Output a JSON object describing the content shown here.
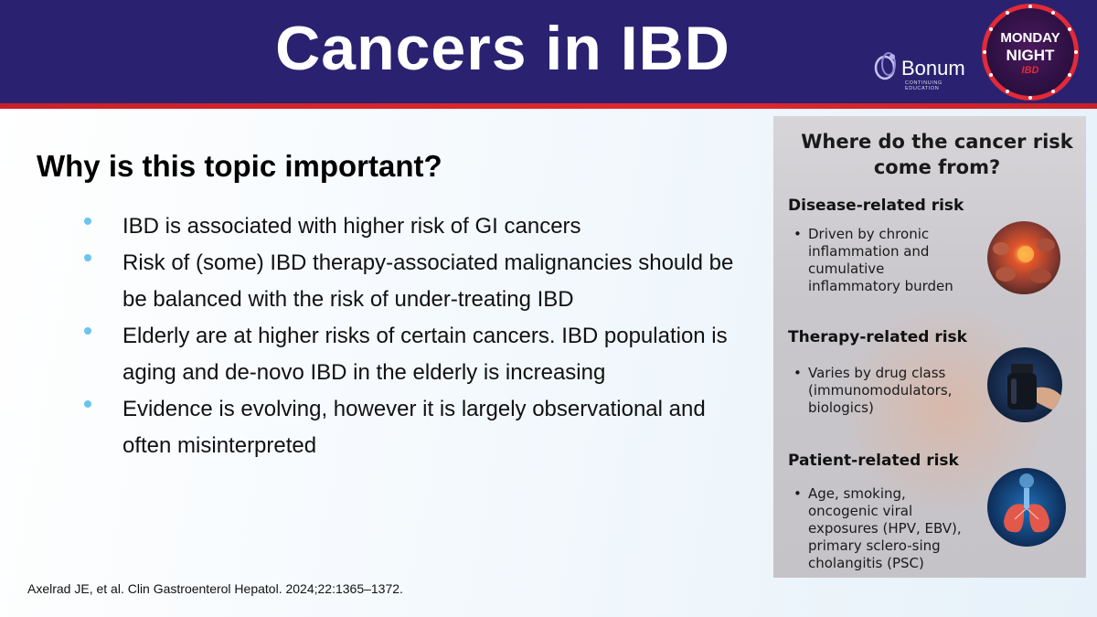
{
  "header": {
    "title": "Cancers in IBD",
    "bonum_logo": {
      "word": "Bonum",
      "sub": "CONTINUING EDUCATION"
    },
    "badge": {
      "line1": "MONDAY",
      "line2": "NIGHT",
      "line3": "IBD"
    }
  },
  "main": {
    "subtitle": "Why is this topic important?",
    "bullets": [
      {
        "text": "IBD is associated with higher risk of GI cancers"
      },
      {
        "text": "Risk of (some) IBD therapy-associated malignancies should be be balanced with the risk of under-treating IBD"
      },
      {
        "text": "Elderly are at higher risks of certain cancers. IBD population is aging and de-novo IBD in the elderly is increasing"
      },
      {
        "text": "Evidence is evolving, however it is largely observational and often misinterpreted"
      }
    ],
    "citation": "Axelrad JE, et al. Clin Gastroenterol Hepatol. 2024;22:1365–1372."
  },
  "panel": {
    "title": "Where do the cancer risk come from?",
    "sections": [
      {
        "heading": "Disease-related risk",
        "bullet": "Driven by chronic inflammation and cumulative inflammatory burden",
        "icon": "inflamed-tissue-icon"
      },
      {
        "heading": "Therapy-related risk",
        "bullet": "Varies by drug class (immunomodulators, biologics)",
        "icon": "pill-bottle-icon"
      },
      {
        "heading": "Patient-related risk",
        "bullet": "Age, smoking, oncogenic viral exposures (HPV, EBV), primary sclero-sing cholangitis (PSC)",
        "icon": "lungs-icon"
      }
    ]
  },
  "colors": {
    "header_bg": "#2a2270",
    "header_stripe": "#e0282e",
    "bullet_dot": "#6cc4ee"
  }
}
